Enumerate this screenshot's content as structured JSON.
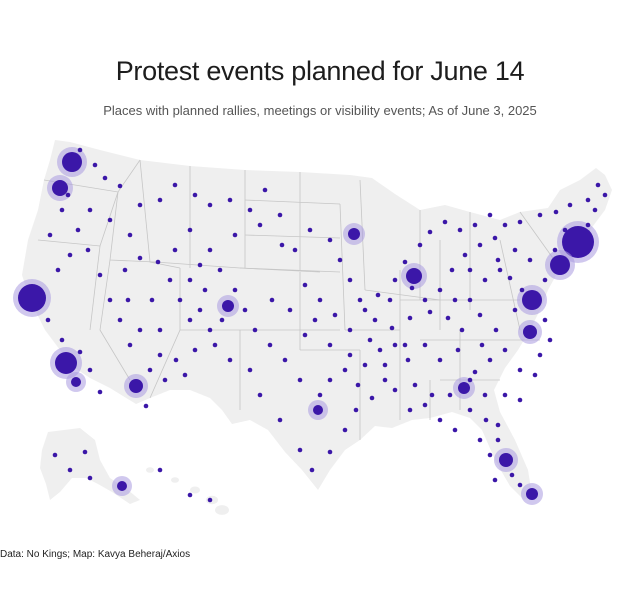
{
  "title": "Protest events planned for June 14",
  "subtitle": "Places with planned rallies, meetings or visibility events; As of June 3, 2025",
  "credit": "Data: No Kings; Map: Kavya Beheraj/Axios",
  "colors": {
    "land": "#efefef",
    "border": "#c6c6c6",
    "dot": "#3b17a8",
    "halo": "#a99be0"
  },
  "map_elements": {
    "contiguous_us": "land-shape",
    "alaska": "land-shape",
    "hawaii": "island-chain",
    "state_borders": "line-grid"
  }
}
